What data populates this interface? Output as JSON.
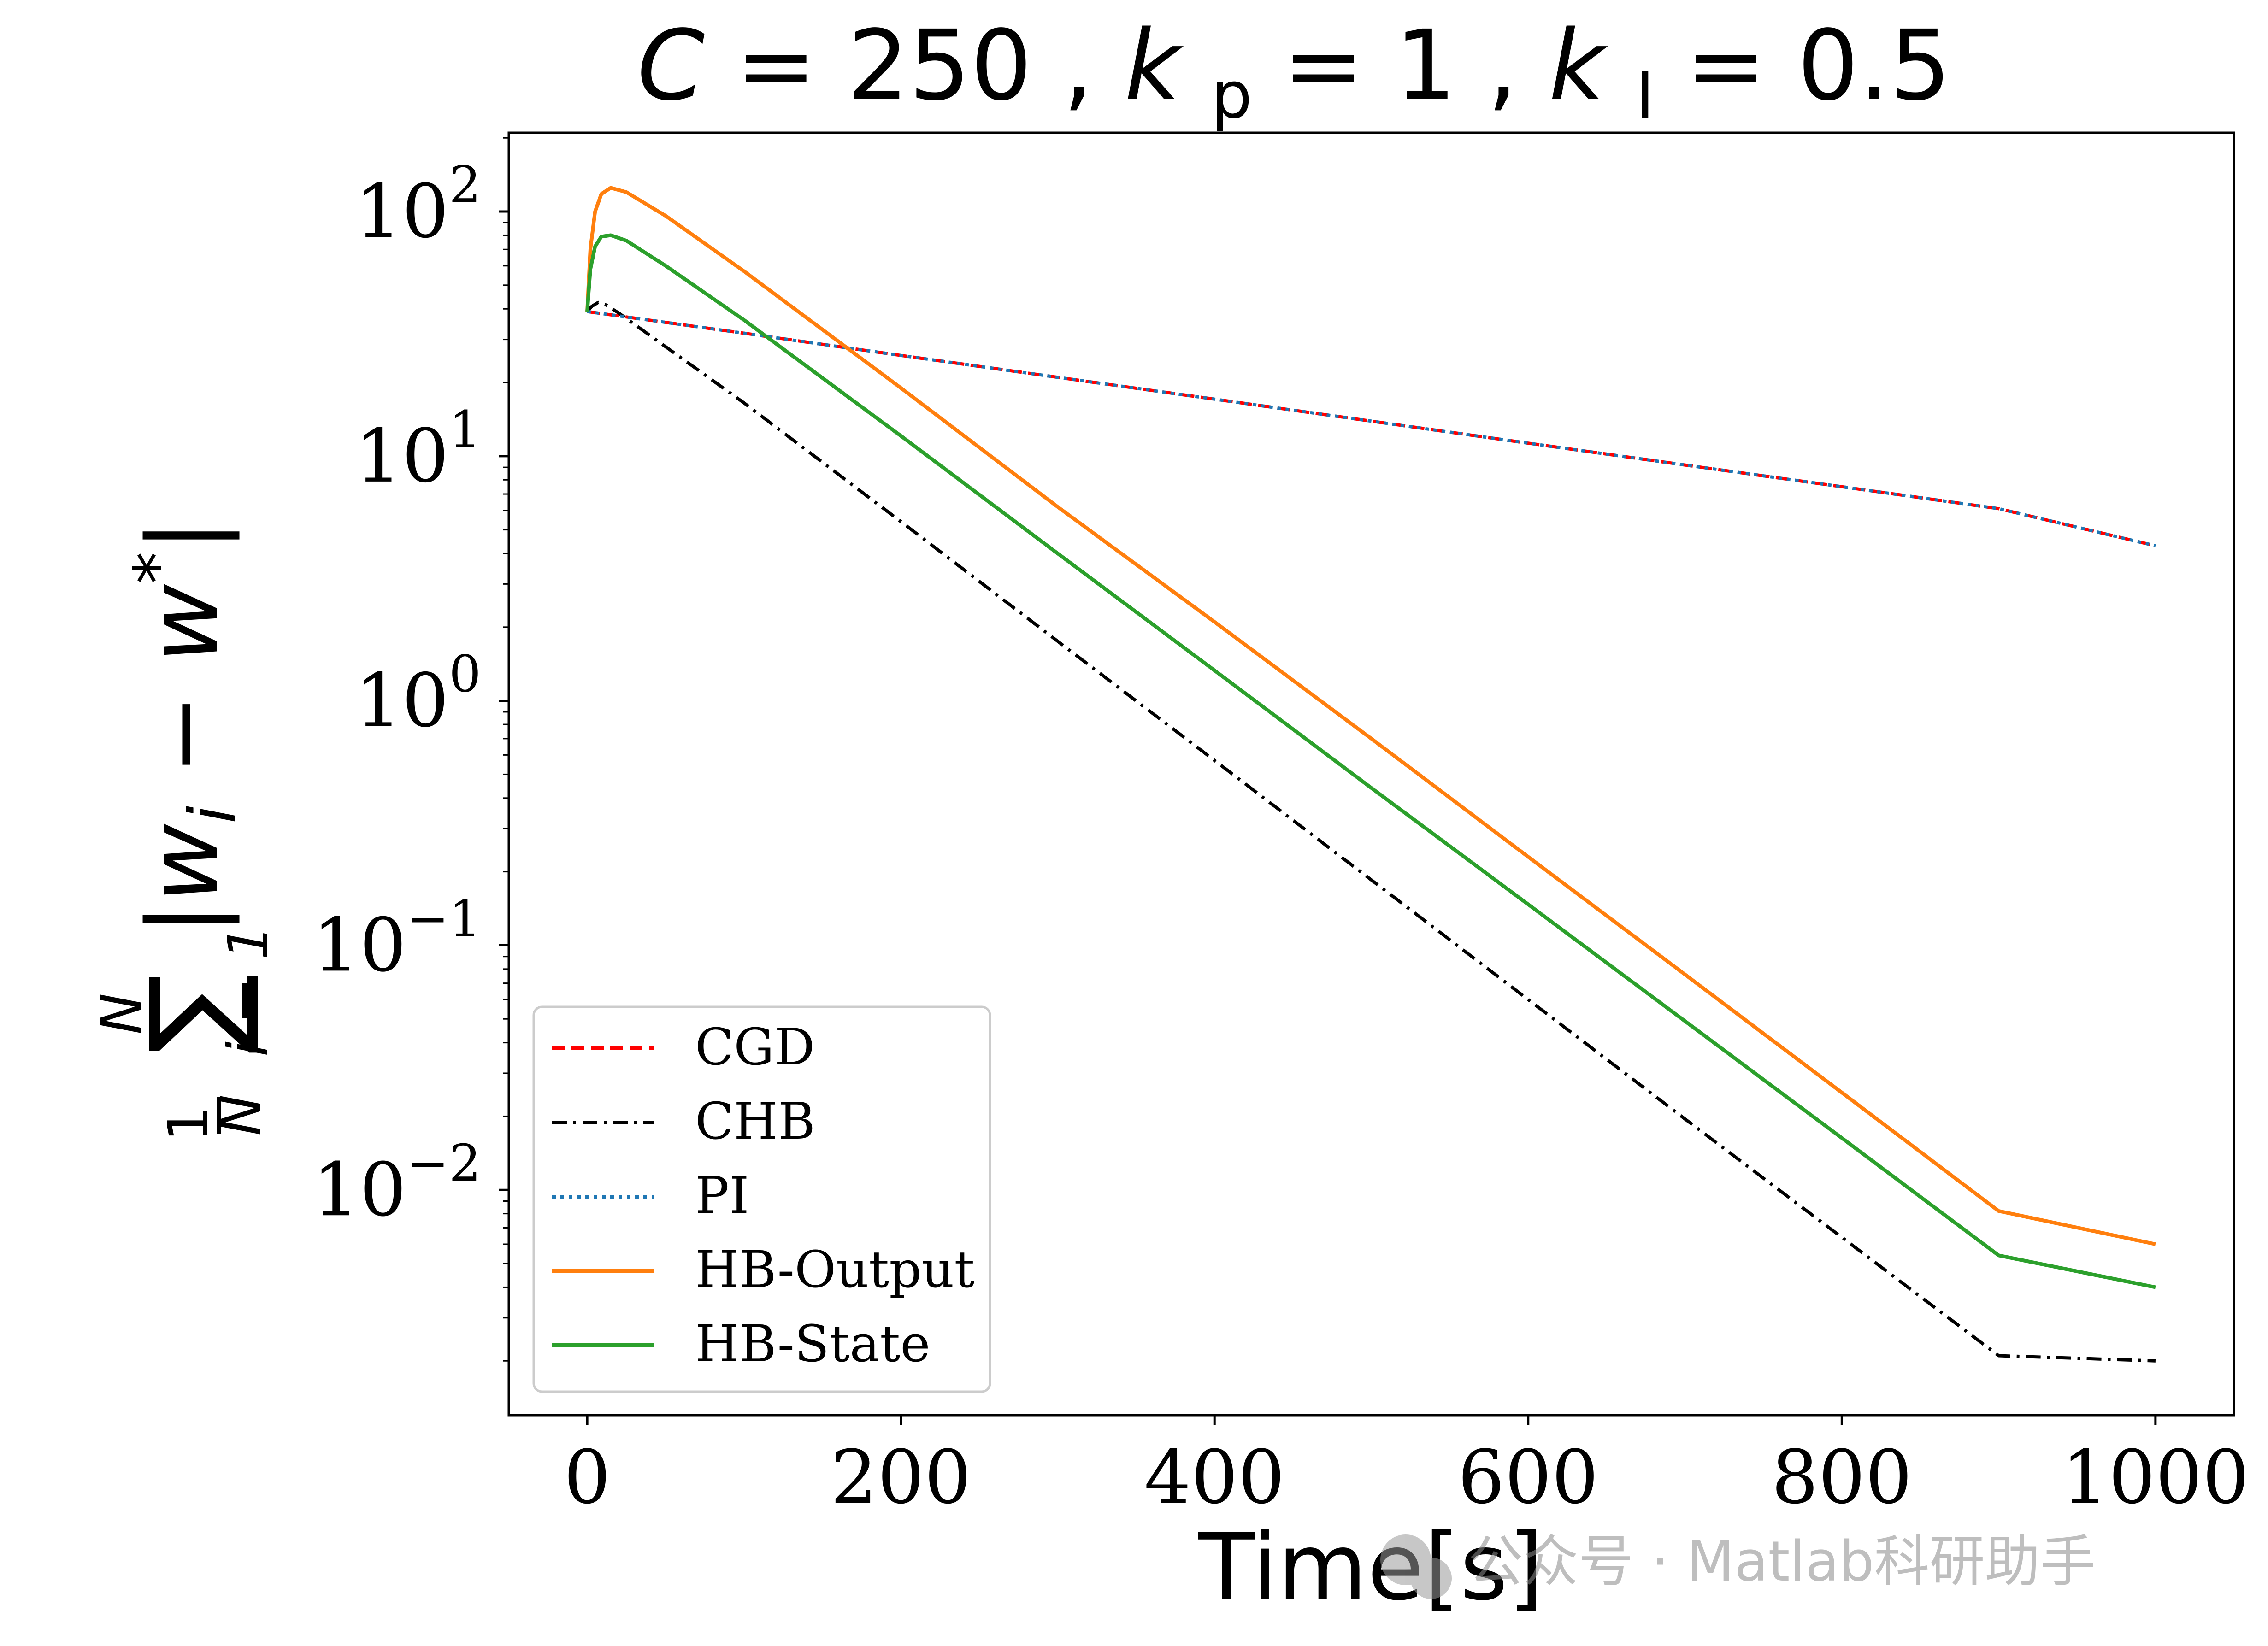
{
  "chart_data": {
    "type": "line",
    "title": "C = 250, k_p = 1, k_I = 0.5",
    "title_parts": {
      "c_label": "C",
      "c_value": "250",
      "kp_label": "k",
      "kp_sub": "p",
      "kp_value": "1",
      "ki_label": "k",
      "ki_sub": "I",
      "ki_value": "0.5"
    },
    "xlabel": "Time[s]",
    "ylabel": "(1/N) Σ_{i=1}^{N} |w_i − w*|",
    "ylabel_parts": {
      "frac_num": "1",
      "frac_den": "N",
      "sum": "∑",
      "sum_upper": "N",
      "sum_lower": "i = 1",
      "expr": "|w",
      "expr_sub": "i",
      "minus": " − ",
      "w": "w",
      "star": "*",
      "close": "|"
    },
    "y_scale": "log",
    "xlim": [
      -50,
      1050
    ],
    "ylim": [
      0.0012,
      210
    ],
    "x_ticks": [
      0,
      200,
      400,
      600,
      800,
      1000
    ],
    "x_tick_labels": [
      "0",
      "200",
      "400",
      "600",
      "800",
      "1000"
    ],
    "y_ticks": [
      0.01,
      0.1,
      1,
      10,
      100
    ],
    "y_tick_labels": [
      {
        "base": "10",
        "exp": "−2"
      },
      {
        "base": "10",
        "exp": "−1"
      },
      {
        "base": "10",
        "exp": "0"
      },
      {
        "base": "10",
        "exp": "1"
      },
      {
        "base": "10",
        "exp": "2"
      }
    ],
    "legend_position": "lower-left",
    "series": [
      {
        "name": "CGD",
        "color": "#ff0000",
        "style": "dashed",
        "points": [
          [
            0,
            39
          ],
          [
            100,
            31.8
          ],
          [
            200,
            25.8
          ],
          [
            300,
            21
          ],
          [
            400,
            17.1
          ],
          [
            500,
            13.9
          ],
          [
            600,
            11.3
          ],
          [
            700,
            9.2
          ],
          [
            800,
            7.5
          ],
          [
            900,
            6.1
          ],
          [
            1000,
            4.3
          ]
        ]
      },
      {
        "name": "CHB",
        "color": "#000000",
        "style": "dashdot",
        "points": [
          [
            0,
            39
          ],
          [
            3,
            41
          ],
          [
            7,
            42.5
          ],
          [
            12,
            41.5
          ],
          [
            20,
            38.5
          ],
          [
            50,
            28
          ],
          [
            100,
            16.5
          ],
          [
            200,
            5.4
          ],
          [
            300,
            1.75
          ],
          [
            400,
            0.57
          ],
          [
            500,
            0.185
          ],
          [
            600,
            0.06
          ],
          [
            700,
            0.0195
          ],
          [
            800,
            0.0064
          ],
          [
            900,
            0.0021
          ],
          [
            1000,
            0.002
          ]
        ]
      },
      {
        "name": "PI",
        "color": "#1f77b4",
        "style": "dotted",
        "points": [
          [
            0,
            39
          ],
          [
            100,
            31.8
          ],
          [
            200,
            25.8
          ],
          [
            300,
            21
          ],
          [
            400,
            17.1
          ],
          [
            500,
            13.9
          ],
          [
            600,
            11.3
          ],
          [
            700,
            9.2
          ],
          [
            800,
            7.5
          ],
          [
            900,
            6.1
          ],
          [
            1000,
            4.3
          ]
        ]
      },
      {
        "name": "HB-Output",
        "color": "#ff7f0e",
        "style": "solid",
        "points": [
          [
            0,
            39
          ],
          [
            2,
            70
          ],
          [
            5,
            100
          ],
          [
            9,
            118
          ],
          [
            15,
            125
          ],
          [
            25,
            120
          ],
          [
            50,
            96
          ],
          [
            100,
            57
          ],
          [
            200,
            19
          ],
          [
            300,
            6.2
          ],
          [
            400,
            2.1
          ],
          [
            500,
            0.7
          ],
          [
            600,
            0.23
          ],
          [
            700,
            0.076
          ],
          [
            800,
            0.025
          ],
          [
            900,
            0.0082
          ],
          [
            1000,
            0.006
          ]
        ]
      },
      {
        "name": "HB-State",
        "color": "#2ca02c",
        "style": "solid",
        "points": [
          [
            0,
            39
          ],
          [
            2,
            58
          ],
          [
            5,
            72
          ],
          [
            9,
            79
          ],
          [
            15,
            80
          ],
          [
            25,
            76
          ],
          [
            50,
            60
          ],
          [
            100,
            36
          ],
          [
            200,
            12.1
          ],
          [
            300,
            4
          ],
          [
            400,
            1.33
          ],
          [
            500,
            0.44
          ],
          [
            600,
            0.147
          ],
          [
            700,
            0.049
          ],
          [
            800,
            0.0163
          ],
          [
            900,
            0.0054
          ],
          [
            1000,
            0.004
          ]
        ]
      }
    ]
  },
  "watermark": {
    "text": "公众号 · Matlab科研助手"
  }
}
